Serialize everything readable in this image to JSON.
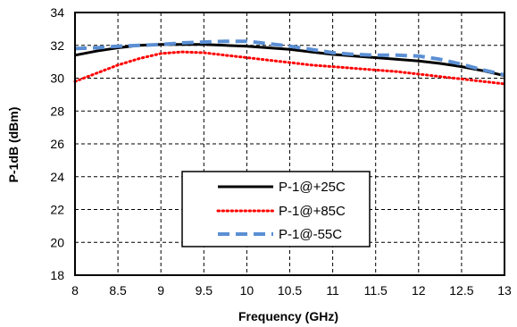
{
  "chart_data": {
    "type": "line",
    "title": "",
    "xlabel": "Frequency (GHz)",
    "ylabel": "P-1dB (dBm)",
    "xlim": [
      8,
      13
    ],
    "ylim": [
      18,
      34
    ],
    "xticks": [
      "8",
      "8.5",
      "9",
      "9.5",
      "10",
      "10.5",
      "11",
      "11.5",
      "12",
      "12.5",
      "13"
    ],
    "yticks": [
      "18",
      "20",
      "22",
      "24",
      "26",
      "28",
      "30",
      "32",
      "34"
    ],
    "grid": true,
    "legend_position": "lower-center",
    "series": [
      {
        "name": "P-1@+25C",
        "color": "#000000",
        "style": "solid",
        "x": [
          8,
          8.25,
          8.5,
          8.75,
          9,
          9.25,
          9.5,
          9.75,
          10,
          10.25,
          10.5,
          10.75,
          11,
          11.25,
          11.5,
          11.75,
          12,
          12.25,
          12.5,
          12.75,
          13
        ],
        "y": [
          31.4,
          31.65,
          31.85,
          32.0,
          32.05,
          32.05,
          32.05,
          32.0,
          31.95,
          31.85,
          31.75,
          31.6,
          31.45,
          31.35,
          31.25,
          31.15,
          31.05,
          30.9,
          30.7,
          30.45,
          30.15
        ]
      },
      {
        "name": "P-1@+85C",
        "color": "#ff0000",
        "style": "dotted",
        "x": [
          8,
          8.25,
          8.5,
          8.75,
          9,
          9.25,
          9.5,
          9.75,
          10,
          10.25,
          10.5,
          10.75,
          11,
          11.25,
          11.5,
          11.75,
          12,
          12.25,
          12.5,
          12.75,
          13
        ],
        "y": [
          29.8,
          30.3,
          30.8,
          31.2,
          31.5,
          31.6,
          31.55,
          31.4,
          31.25,
          31.1,
          30.95,
          30.8,
          30.7,
          30.6,
          30.5,
          30.4,
          30.25,
          30.1,
          29.95,
          29.8,
          29.65
        ]
      },
      {
        "name": "P-1@-55C",
        "color": "#5b8fd4",
        "style": "dashed",
        "x": [
          8,
          8.25,
          8.5,
          8.75,
          9,
          9.25,
          9.5,
          9.75,
          10,
          10.25,
          10.5,
          10.75,
          11,
          11.25,
          11.5,
          11.75,
          12,
          12.25,
          12.5,
          12.75,
          13
        ],
        "y": [
          31.8,
          31.85,
          31.95,
          32.0,
          32.05,
          32.15,
          32.2,
          32.25,
          32.25,
          32.1,
          31.95,
          31.75,
          31.55,
          31.45,
          31.4,
          31.4,
          31.35,
          31.15,
          30.85,
          30.5,
          30.2
        ]
      }
    ]
  }
}
